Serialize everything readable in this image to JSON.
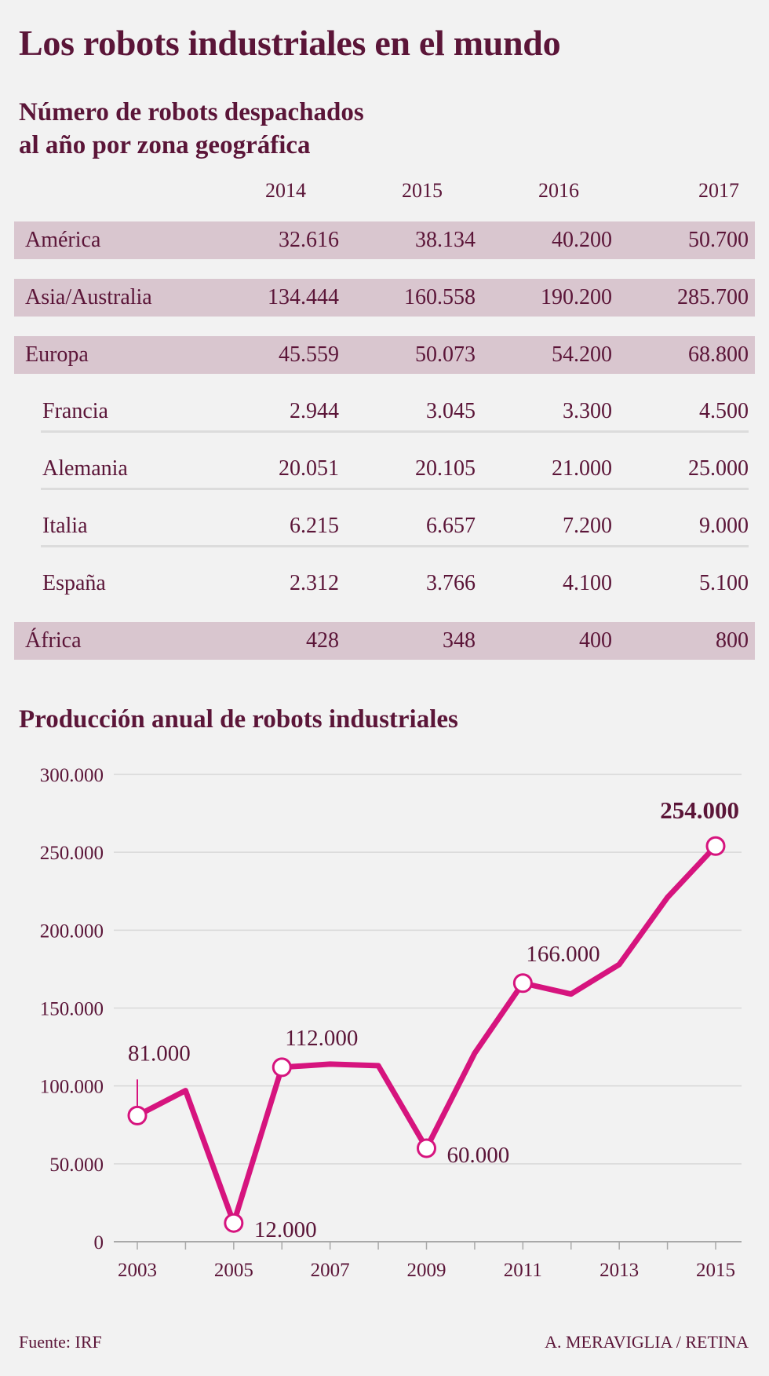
{
  "title": "Los robots industriales en el mundo",
  "table": {
    "subtitle_line1": "Número de robots despachados",
    "subtitle_line2": "al año por zona geográfica",
    "years": [
      "2014",
      "2015",
      "2016",
      "2017"
    ],
    "rows": [
      {
        "label": "América",
        "kind": "region",
        "values": [
          "32.616",
          "38.134",
          "40.200",
          "50.700"
        ]
      },
      {
        "label": "Asia/Australia",
        "kind": "region",
        "values": [
          "134.444",
          "160.558",
          "190.200",
          "285.700"
        ]
      },
      {
        "label": "Europa",
        "kind": "region",
        "values": [
          "45.559",
          "50.073",
          "54.200",
          "68.800"
        ]
      },
      {
        "label": "Francia",
        "kind": "country",
        "values": [
          "2.944",
          "3.045",
          "3.300",
          "4.500"
        ]
      },
      {
        "label": "Alemania",
        "kind": "country",
        "values": [
          "20.051",
          "20.105",
          "21.000",
          "25.000"
        ]
      },
      {
        "label": "Italia",
        "kind": "country",
        "values": [
          "6.215",
          "6.657",
          "7.200",
          "9.000"
        ]
      },
      {
        "label": "España",
        "kind": "country",
        "values": [
          "2.312",
          "3.766",
          "4.100",
          "5.100"
        ]
      },
      {
        "label": "África",
        "kind": "region",
        "values": [
          "428",
          "348",
          "400",
          "800"
        ]
      }
    ]
  },
  "chart_data": {
    "type": "line",
    "title": "Producción anual de robots industriales",
    "x": [
      2003,
      2004,
      2005,
      2006,
      2007,
      2008,
      2009,
      2010,
      2011,
      2012,
      2013,
      2014,
      2015
    ],
    "y": [
      81000,
      97000,
      12000,
      112000,
      114000,
      113000,
      60000,
      121000,
      166000,
      159000,
      178000,
      221000,
      254000
    ],
    "ylim": [
      0,
      300000
    ],
    "yticks": [
      0,
      50000,
      100000,
      150000,
      200000,
      250000,
      300000
    ],
    "ytick_labels": [
      "0",
      "50.000",
      "100.000",
      "150.000",
      "200.000",
      "250.000",
      "300.000"
    ],
    "xtick_labels": [
      "2003",
      "2005",
      "2007",
      "2009",
      "2011",
      "2013",
      "2015"
    ],
    "annotations": [
      {
        "x": 2003,
        "label": "81.000"
      },
      {
        "x": 2005,
        "label": "12.000"
      },
      {
        "x": 2006,
        "label": "112.000"
      },
      {
        "x": 2009,
        "label": "60.000"
      },
      {
        "x": 2011,
        "label": "166.000"
      },
      {
        "x": 2015,
        "label": "254.000"
      }
    ],
    "line_color": "#d6147e",
    "grid": true
  },
  "source": "Fuente: IRF",
  "credit": "A. MERAVIGLIA / RETINA"
}
